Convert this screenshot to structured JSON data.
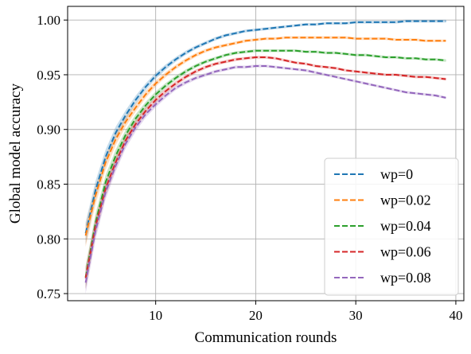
{
  "chart_data": {
    "type": "line",
    "title": "",
    "xlabel": "Communication rounds",
    "ylabel": "Global model accuracy",
    "xlim": [
      1.2,
      40.8
    ],
    "ylim": [
      0.7435,
      1.0125
    ],
    "grid": true,
    "legend_position": "lower-right",
    "x_ticks": [
      10,
      20,
      30,
      40
    ],
    "x_tick_labels": [
      "10",
      "20",
      "30",
      "40"
    ],
    "y_ticks": [
      0.75,
      0.8,
      0.85,
      0.9,
      0.95,
      1.0
    ],
    "y_tick_labels": [
      "0.75",
      "0.80",
      "0.85",
      "0.90",
      "0.95",
      "1.00"
    ],
    "x": [
      3,
      4,
      5,
      6,
      7,
      8,
      9,
      10,
      11,
      12,
      13,
      14,
      15,
      16,
      17,
      18,
      19,
      20,
      21,
      22,
      23,
      24,
      25,
      26,
      27,
      28,
      29,
      30,
      31,
      32,
      33,
      34,
      35,
      36,
      37,
      38,
      39
    ],
    "series": [
      {
        "name": "wp=0",
        "color": "#1f77b4",
        "values": [
          0.805,
          0.845,
          0.875,
          0.897,
          0.913,
          0.927,
          0.939,
          0.949,
          0.957,
          0.964,
          0.97,
          0.975,
          0.979,
          0.983,
          0.986,
          0.988,
          0.99,
          0.991,
          0.992,
          0.993,
          0.994,
          0.995,
          0.996,
          0.996,
          0.997,
          0.997,
          0.997,
          0.998,
          0.998,
          0.998,
          0.998,
          0.998,
          0.999,
          0.999,
          0.999,
          0.999,
          0.999
        ]
      },
      {
        "name": "wp=0.02",
        "color": "#ff7f0e",
        "values": [
          0.803,
          0.84,
          0.87,
          0.891,
          0.907,
          0.92,
          0.932,
          0.942,
          0.95,
          0.957,
          0.963,
          0.968,
          0.972,
          0.975,
          0.977,
          0.979,
          0.981,
          0.982,
          0.983,
          0.983,
          0.984,
          0.984,
          0.984,
          0.984,
          0.984,
          0.984,
          0.984,
          0.983,
          0.983,
          0.983,
          0.983,
          0.982,
          0.982,
          0.982,
          0.981,
          0.981,
          0.981
        ]
      },
      {
        "name": "wp=0.04",
        "color": "#2ca02c",
        "values": [
          0.765,
          0.815,
          0.852,
          0.876,
          0.895,
          0.91,
          0.922,
          0.932,
          0.94,
          0.947,
          0.953,
          0.958,
          0.962,
          0.965,
          0.968,
          0.97,
          0.971,
          0.972,
          0.972,
          0.972,
          0.972,
          0.972,
          0.971,
          0.971,
          0.97,
          0.97,
          0.969,
          0.968,
          0.968,
          0.967,
          0.966,
          0.966,
          0.965,
          0.965,
          0.964,
          0.964,
          0.963
        ]
      },
      {
        "name": "wp=0.06",
        "color": "#d62728",
        "values": [
          0.764,
          0.812,
          0.846,
          0.87,
          0.89,
          0.905,
          0.917,
          0.927,
          0.935,
          0.942,
          0.948,
          0.953,
          0.957,
          0.96,
          0.962,
          0.964,
          0.965,
          0.966,
          0.966,
          0.965,
          0.963,
          0.961,
          0.96,
          0.958,
          0.957,
          0.956,
          0.954,
          0.953,
          0.952,
          0.951,
          0.95,
          0.95,
          0.949,
          0.948,
          0.948,
          0.947,
          0.946
        ]
      },
      {
        "name": "wp=0.08",
        "color": "#9467bd",
        "values": [
          0.76,
          0.808,
          0.843,
          0.867,
          0.887,
          0.902,
          0.914,
          0.923,
          0.931,
          0.938,
          0.943,
          0.947,
          0.95,
          0.953,
          0.955,
          0.957,
          0.957,
          0.958,
          0.958,
          0.957,
          0.956,
          0.955,
          0.954,
          0.952,
          0.95,
          0.948,
          0.946,
          0.944,
          0.942,
          0.94,
          0.938,
          0.936,
          0.934,
          0.933,
          0.932,
          0.931,
          0.929
        ]
      }
    ]
  }
}
